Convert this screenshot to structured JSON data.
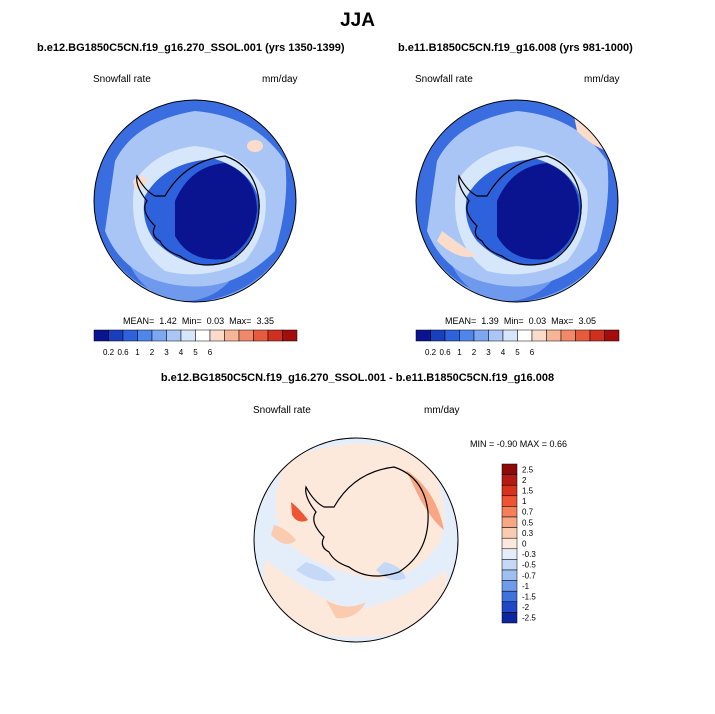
{
  "page_title": "JJA",
  "panels": [
    {
      "case": "b.e12.BG1850C5CN.f19_g16.270_SSOL.001 (yrs 1350-1399)",
      "variable": "Snowfall rate",
      "units": "mm/day",
      "stats": {
        "mean_label": "MEAN=",
        "mean": "1.42",
        "min_label": "Min=",
        "min": "0.03",
        "max_label": "Max=",
        "max": "3.35"
      }
    },
    {
      "case": "b.e11.B1850C5CN.f19_g16.008 (yrs 981-1000)",
      "variable": "Snowfall rate",
      "units": "mm/day",
      "stats": {
        "mean_label": "MEAN=",
        "mean": "1.39",
        "min_label": "Min=",
        "min": "0.03",
        "max_label": "Max=",
        "max": "3.05"
      }
    }
  ],
  "colorbar_abs": {
    "colors": [
      "#0a1490",
      "#1a3fbe",
      "#2e62dc",
      "#4f86ec",
      "#7ea7f2",
      "#aac6f7",
      "#d6e6fb",
      "#ffffff",
      "#fbdccb",
      "#f6b596",
      "#f0896a",
      "#e65b3e",
      "#d0301f",
      "#a30d0c"
    ],
    "ticks": [
      "0.2",
      "0.6",
      "1",
      "2",
      "3",
      "4",
      "5",
      "6"
    ]
  },
  "diff_panel": {
    "title": "b.e12.BG1850C5CN.f19_g16.270_SSOL.001 - b.e11.B1850C5CN.f19_g16.008",
    "variable": "Snowfall rate",
    "units": "mm/day",
    "minmax": "MIN =  -0.90 MAX =  0.66"
  },
  "colorbar_diff": {
    "colors": [
      "#8e0a08",
      "#b51a12",
      "#d8321c",
      "#ee5534",
      "#f47f58",
      "#f7a783",
      "#fbcbaf",
      "#fde9dc",
      "#e4eefb",
      "#c5d9f6",
      "#9ebff0",
      "#6f9ce8",
      "#3f73dc",
      "#1f48c4",
      "#0e25a0"
    ],
    "ticks": [
      "2.5",
      "2",
      "1.5",
      "1",
      "0.7",
      "0.5",
      "0.3",
      "0",
      "-0.3",
      "-0.5",
      "-0.7",
      "-1",
      "-1.5",
      "-2",
      "-2.5"
    ]
  }
}
